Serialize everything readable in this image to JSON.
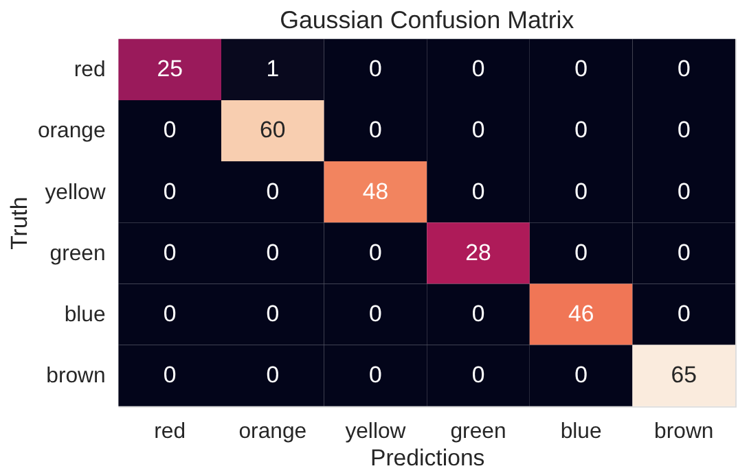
{
  "chart_data": {
    "type": "heatmap",
    "title": "Gaussian Confusion Matrix",
    "xlabel": "Predictions",
    "ylabel": "Truth",
    "categories": [
      "red",
      "orange",
      "yellow",
      "green",
      "blue",
      "brown"
    ],
    "y_categories": [
      "red",
      "orange",
      "yellow",
      "green",
      "blue",
      "brown"
    ],
    "cells": [
      [
        25,
        1,
        0,
        0,
        0,
        0
      ],
      [
        0,
        60,
        0,
        0,
        0,
        0
      ],
      [
        0,
        0,
        48,
        0,
        0,
        0
      ],
      [
        0,
        0,
        0,
        28,
        0,
        0
      ],
      [
        0,
        0,
        0,
        0,
        46,
        0
      ],
      [
        0,
        0,
        0,
        0,
        0,
        65
      ]
    ],
    "data_labels": true
  }
}
